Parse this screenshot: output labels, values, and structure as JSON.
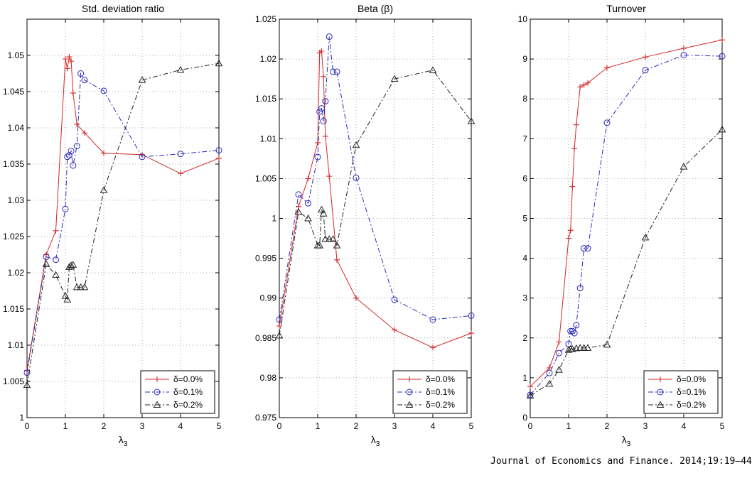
{
  "colors": {
    "d0": "#d62728",
    "d1": "#2a2ab8",
    "d2": "#222222"
  },
  "source": "Journal of Economics and Finance. 2014;19:19–44",
  "chart_data": [
    {
      "type": "line",
      "title": "Std. deviation ratio",
      "xlabel": "λ3",
      "xlim": [
        0,
        5
      ],
      "ylim": [
        1,
        1.055
      ],
      "xticks": [
        0,
        1,
        2,
        3,
        4,
        5
      ],
      "xtick_labels": [
        "0",
        "1",
        "2",
        "3",
        "4",
        "5"
      ],
      "yticks": [
        1,
        1.005,
        1.01,
        1.015,
        1.02,
        1.025,
        1.03,
        1.035,
        1.04,
        1.045,
        1.05
      ],
      "ytick_labels": [
        "1",
        "1.005",
        "1.01",
        "1.015",
        "1.02",
        "1.025",
        "1.03",
        "1.035",
        "1.04",
        "1.045",
        "1.05"
      ],
      "grid": true,
      "legend_position": "bottom-right",
      "series": [
        {
          "name": "δ=0.0%",
          "color_key": "d0",
          "marker": "plus",
          "dash": "",
          "x": [
            0,
            0.5,
            0.75,
            1,
            1.05,
            1.1,
            1.15,
            1.2,
            1.3,
            1.5,
            2,
            3,
            4,
            5
          ],
          "y": [
            1.0065,
            1.0225,
            1.0258,
            1.0495,
            1.0482,
            1.0498,
            1.0492,
            1.0448,
            1.0405,
            1.0393,
            1.0365,
            1.0363,
            1.0337,
            1.0358
          ]
        },
        {
          "name": "δ=0.1%",
          "color_key": "d1",
          "marker": "circle",
          "dash": "7,3,2,3",
          "x": [
            0,
            0.5,
            0.75,
            1,
            1.05,
            1.1,
            1.15,
            1.2,
            1.3,
            1.4,
            1.5,
            2,
            3,
            4,
            5
          ],
          "y": [
            1.0062,
            1.0222,
            1.0218,
            1.0288,
            1.036,
            1.0362,
            1.0368,
            1.0348,
            1.0375,
            1.0475,
            1.0466,
            1.0451,
            1.036,
            1.0364,
            1.0369
          ]
        },
        {
          "name": "δ=0.2%",
          "color_key": "d2",
          "marker": "triangle",
          "dash": "7,3,2,3",
          "x": [
            0,
            0.5,
            0.75,
            1,
            1.05,
            1.1,
            1.15,
            1.2,
            1.3,
            1.4,
            1.5,
            2,
            3,
            4,
            5
          ],
          "y": [
            1.0045,
            1.0212,
            1.0197,
            1.0168,
            1.0163,
            1.0208,
            1.021,
            1.0211,
            1.018,
            1.018,
            1.018,
            1.0314,
            1.0466,
            1.048,
            1.0489
          ]
        }
      ]
    },
    {
      "type": "line",
      "title": "Beta (β)",
      "xlabel": "λ3",
      "xlim": [
        0,
        5
      ],
      "ylim": [
        0.975,
        1.025
      ],
      "xticks": [
        0,
        1,
        2,
        3,
        4,
        5
      ],
      "xtick_labels": [
        "0",
        "1",
        "2",
        "3",
        "4",
        "5"
      ],
      "yticks": [
        0.975,
        0.98,
        0.985,
        0.99,
        0.995,
        1,
        1.005,
        1.01,
        1.015,
        1.02,
        1.025
      ],
      "ytick_labels": [
        "0.975",
        "0.98",
        "0.985",
        "0.99",
        "0.995",
        "1",
        "1.005",
        "1.01",
        "1.015",
        "1.02",
        "1.025"
      ],
      "grid": true,
      "legend_position": "bottom-right",
      "series": [
        {
          "name": "δ=0.0%",
          "color_key": "d0",
          "marker": "plus",
          "dash": "",
          "x": [
            0,
            0.5,
            0.75,
            1,
            1.05,
            1.1,
            1.15,
            1.2,
            1.3,
            1.5,
            2,
            3,
            4,
            5
          ],
          "y": [
            0.9865,
            1.0015,
            1.005,
            1.0095,
            1.0208,
            1.021,
            1.0178,
            1.0103,
            1.0053,
            0.9948,
            0.99,
            0.986,
            0.9838,
            0.9856
          ]
        },
        {
          "name": "δ=0.1%",
          "color_key": "d1",
          "marker": "circle",
          "dash": "7,3,2,3",
          "x": [
            0,
            0.5,
            0.75,
            1,
            1.05,
            1.1,
            1.15,
            1.2,
            1.3,
            1.4,
            1.5,
            2,
            3,
            4,
            5
          ],
          "y": [
            0.9873,
            1.003,
            1.0019,
            1.0077,
            1.0134,
            1.0138,
            1.0122,
            1.0147,
            1.0228,
            1.0184,
            1.0184,
            1.0051,
            0.9898,
            0.9873,
            0.9878
          ]
        },
        {
          "name": "δ=0.2%",
          "color_key": "d2",
          "marker": "triangle",
          "dash": "7,3,2,3",
          "x": [
            0,
            0.5,
            0.75,
            1,
            1.05,
            1.1,
            1.15,
            1.2,
            1.3,
            1.4,
            1.5,
            2,
            3,
            4,
            5
          ],
          "y": [
            0.9853,
            1.0008,
            1.0,
            0.9966,
            0.9966,
            1.0011,
            1.0006,
            0.9974,
            0.9974,
            0.9974,
            0.9966,
            1.0092,
            1.0175,
            1.0186,
            1.0122
          ]
        }
      ]
    },
    {
      "type": "line",
      "title": "Turnover",
      "xlabel": "λ3",
      "xlim": [
        0,
        5
      ],
      "ylim": [
        0,
        10
      ],
      "xticks": [
        0,
        1,
        2,
        3,
        4,
        5
      ],
      "xtick_labels": [
        "0",
        "1",
        "2",
        "3",
        "4",
        "5"
      ],
      "yticks": [
        0,
        1,
        2,
        3,
        4,
        5,
        6,
        7,
        8,
        9,
        10
      ],
      "ytick_labels": [
        "0",
        "1",
        "2",
        "3",
        "4",
        "5",
        "6",
        "7",
        "8",
        "9",
        "10"
      ],
      "grid": true,
      "legend_position": "bottom-right",
      "series": [
        {
          "name": "δ=0.0%",
          "color_key": "d0",
          "marker": "plus",
          "dash": "",
          "x": [
            0,
            0.5,
            0.75,
            1,
            1.05,
            1.1,
            1.15,
            1.2,
            1.3,
            1.4,
            1.5,
            2,
            3,
            4,
            5
          ],
          "y": [
            0.78,
            1.25,
            1.9,
            4.5,
            4.7,
            5.8,
            6.75,
            7.35,
            8.3,
            8.35,
            8.4,
            8.78,
            9.05,
            9.27,
            9.48
          ]
        },
        {
          "name": "δ=0.1%",
          "color_key": "d1",
          "marker": "circle",
          "dash": "7,3,2,3",
          "x": [
            0,
            0.5,
            0.75,
            1,
            1.05,
            1.1,
            1.15,
            1.2,
            1.3,
            1.4,
            1.5,
            2,
            3,
            4,
            5
          ],
          "y": [
            0.57,
            1.12,
            1.62,
            1.85,
            2.17,
            2.17,
            2.12,
            2.32,
            3.25,
            4.25,
            4.25,
            7.4,
            8.72,
            9.1,
            9.07
          ]
        },
        {
          "name": "δ=0.2%",
          "color_key": "d2",
          "marker": "triangle",
          "dash": "7,3,2,3",
          "x": [
            0,
            0.5,
            0.75,
            1,
            1.05,
            1.1,
            1.2,
            1.3,
            1.4,
            1.5,
            2,
            3,
            4,
            5
          ],
          "y": [
            0.55,
            0.85,
            1.2,
            1.7,
            1.72,
            1.72,
            1.74,
            1.75,
            1.75,
            1.75,
            1.83,
            4.52,
            6.3,
            7.23
          ]
        }
      ]
    }
  ]
}
